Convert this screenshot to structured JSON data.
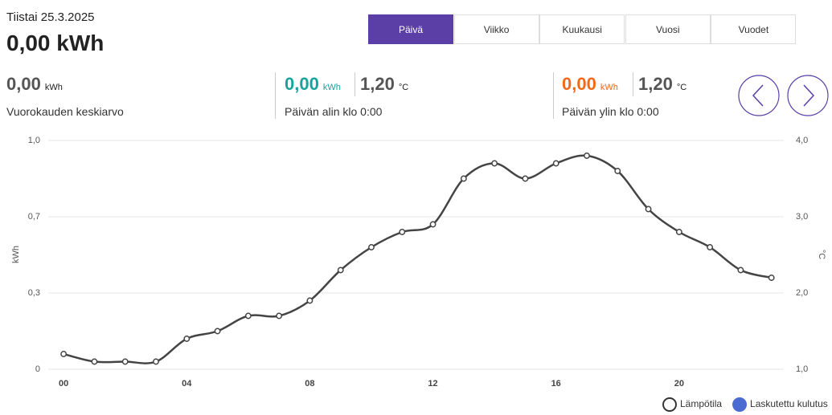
{
  "header": {
    "date": "Tiistai 25.3.2025",
    "total": "0,00",
    "total_unit": "kWh"
  },
  "tabs": [
    {
      "label": "Päivä",
      "active": true
    },
    {
      "label": "Viikko",
      "active": false
    },
    {
      "label": "Kuukausi",
      "active": false
    },
    {
      "label": "Vuosi",
      "active": false
    },
    {
      "label": "Vuodet",
      "active": false
    }
  ],
  "stats": {
    "average": {
      "value": "0,00",
      "unit": "kWh",
      "label": "Vuorokauden keskiarvo"
    },
    "min": {
      "value": "0,00",
      "unit": "kWh",
      "temp": "1,20",
      "temp_unit": "°C",
      "label": "Päivän alin klo 0:00"
    },
    "max": {
      "value": "0,00",
      "unit": "kWh",
      "temp": "1,20",
      "temp_unit": "°C",
      "label": "Päivän ylin klo 0:00"
    }
  },
  "chart_data": {
    "type": "line",
    "y_label": "kWh",
    "y2_label": "°C",
    "x": [
      0,
      1,
      2,
      3,
      4,
      5,
      6,
      7,
      8,
      9,
      10,
      11,
      12,
      13,
      14,
      15,
      16,
      17,
      18,
      19,
      20,
      21,
      22,
      23
    ],
    "xlim": [
      -0.5,
      23.4
    ],
    "xticks": [
      {
        "value": 0,
        "label": "00"
      },
      {
        "value": 4,
        "label": "04"
      },
      {
        "value": 8,
        "label": "08"
      },
      12,
      16,
      20
    ],
    "ylim": [
      0,
      1
    ],
    "yticks": [
      0,
      {
        "value": 0.3333,
        "label": "0,3"
      },
      {
        "value": 0.6667,
        "label": "0,7"
      },
      {
        "value": 1,
        "label": "1,0"
      }
    ],
    "y2lim": [
      1,
      4
    ],
    "y2ticks": [
      {
        "value": 1,
        "label": "1,0"
      },
      {
        "value": 2,
        "label": "2,0"
      },
      {
        "value": 3,
        "label": "3,0"
      },
      {
        "value": 4,
        "label": "4,0"
      }
    ],
    "grid": true,
    "series": [
      {
        "name": "Lämpötila",
        "color": "#444444",
        "axis": "y2",
        "values": [
          1.2,
          1.1,
          1.1,
          1.1,
          1.4,
          1.5,
          1.7,
          1.7,
          1.9,
          2.3,
          2.6,
          2.8,
          2.9,
          3.5,
          3.7,
          3.5,
          3.7,
          3.8,
          3.6,
          3.1,
          2.8,
          2.6,
          2.3,
          2.2
        ]
      },
      {
        "name": "Laskutettu kulutus",
        "color": "#4a6bd0",
        "type": "bar",
        "values": [
          0,
          0,
          0,
          0,
          0,
          0,
          0,
          0,
          0,
          0,
          0,
          0,
          0,
          0,
          0,
          0,
          0,
          0,
          0,
          0,
          0,
          0,
          0,
          0
        ]
      }
    ]
  }
}
